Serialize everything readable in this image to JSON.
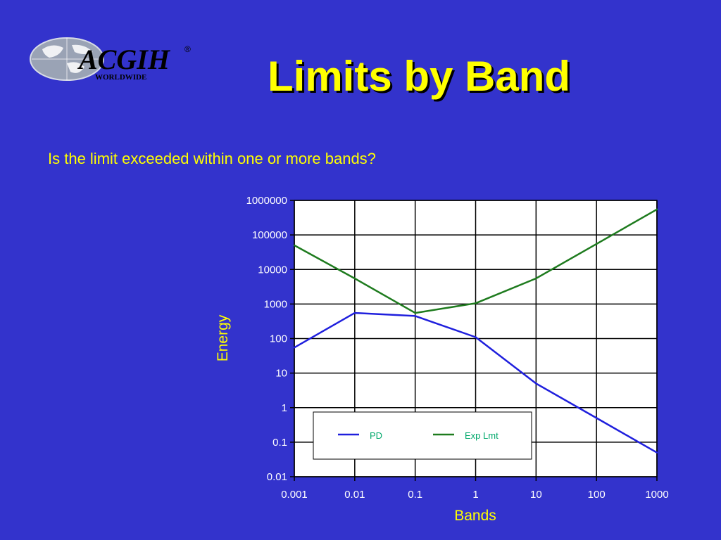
{
  "slide": {
    "title": "Limits by Band",
    "subtitle": "Is the limit exceeded within one or more bands?"
  },
  "logo": {
    "text": "ACGIH",
    "registered": "®",
    "subtext": "WORLDWIDE"
  },
  "colors": {
    "background": "#3333cc",
    "title": "#ffff00",
    "plot_background": "#ffffff",
    "grid": "#000000",
    "pd_series": "#1f1fdd",
    "exp_series": "#1e7b1e",
    "legend_text": "#00a86b"
  },
  "chart_data": {
    "type": "line",
    "x_scale": "log",
    "y_scale": "log",
    "xlabel": "Bands",
    "ylabel": "Energy",
    "xlim": [
      0.001,
      1000
    ],
    "ylim": [
      0.01,
      1000000
    ],
    "x_ticks": [
      "0.001",
      "0.01",
      "0.1",
      "1",
      "10",
      "100",
      "1000"
    ],
    "y_ticks": [
      "0.01",
      "0.1",
      "1",
      "10",
      "100",
      "1000",
      "10000",
      "100000",
      "1000000"
    ],
    "grid": true,
    "legend_position": "bottom-right",
    "series": [
      {
        "name": "PD",
        "color": "#1f1fdd",
        "x": [
          0.001,
          0.01,
          0.1,
          1,
          10,
          100,
          1000
        ],
        "y": [
          55,
          550,
          450,
          110,
          5,
          0.5,
          0.05
        ]
      },
      {
        "name": "Exp Lmt",
        "color": "#1e7b1e",
        "x": [
          0.001,
          0.01,
          0.1,
          1,
          10,
          100,
          1000
        ],
        "y": [
          50000,
          5500,
          550,
          1050,
          5500,
          55000,
          550000
        ]
      }
    ]
  }
}
